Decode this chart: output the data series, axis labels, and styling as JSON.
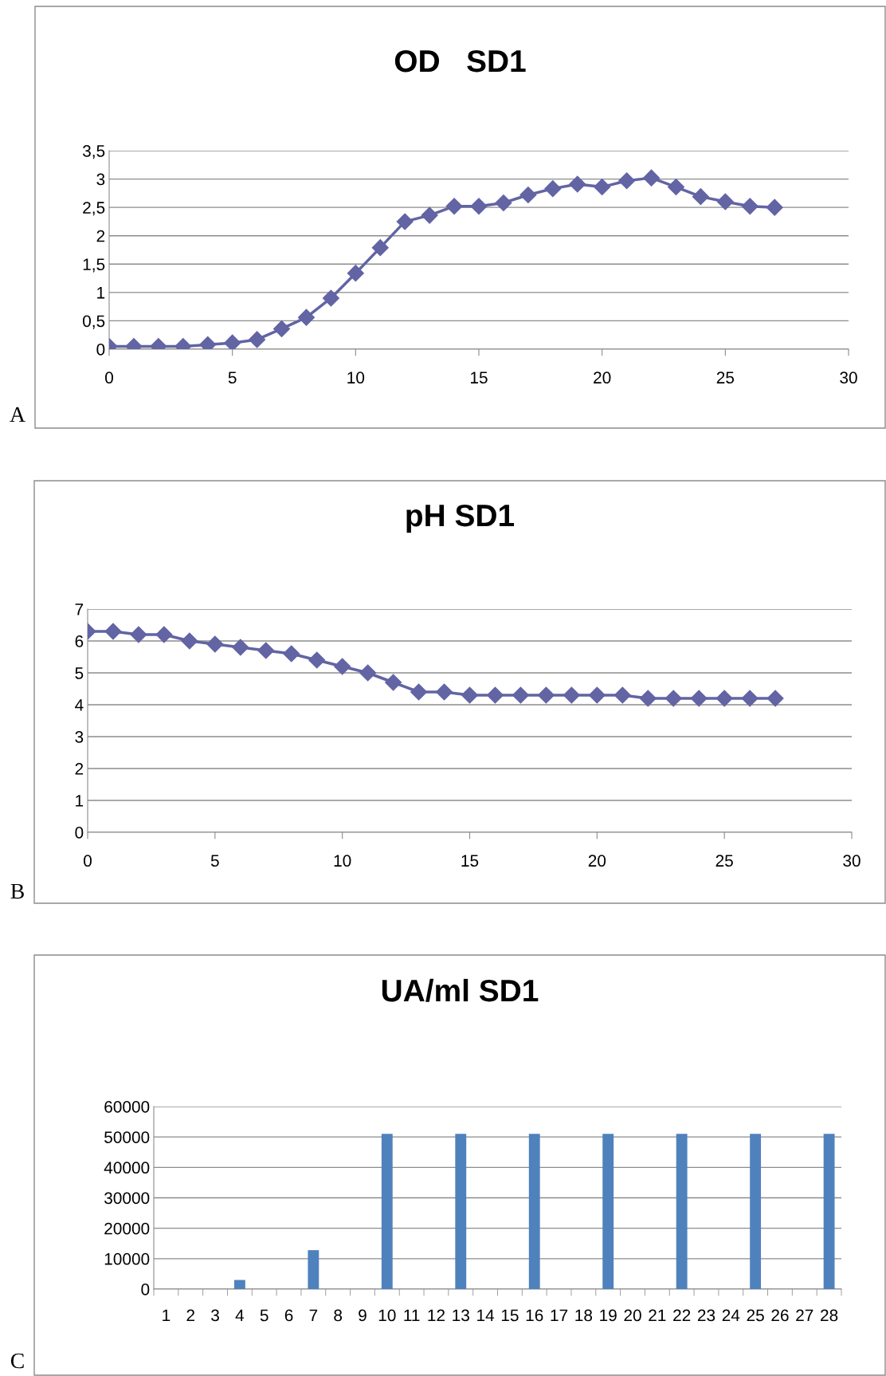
{
  "chart_data": [
    {
      "type": "line",
      "title": "OD   SD1",
      "x": [
        0,
        1,
        2,
        3,
        4,
        5,
        6,
        7,
        8,
        9,
        10,
        11,
        12,
        13,
        14,
        15,
        16,
        17,
        18,
        19,
        20,
        21,
        22,
        23,
        24,
        25,
        26,
        27
      ],
      "series": [
        {
          "color": "#6264a4",
          "values": [
            0.05,
            0.05,
            0.05,
            0.05,
            0.08,
            0.11,
            0.17,
            0.36,
            0.56,
            0.9,
            1.34,
            1.79,
            2.25,
            2.36,
            2.52,
            2.52,
            2.58,
            2.72,
            2.83,
            2.91,
            2.86,
            2.97,
            3.02,
            2.86,
            2.69,
            2.6,
            2.52,
            2.5
          ]
        }
      ],
      "xlim": [
        0,
        30
      ],
      "xticks": [
        0,
        5,
        10,
        15,
        20,
        25,
        30
      ],
      "ylim": [
        0,
        3.5
      ],
      "yticks": [
        0,
        {
          "value": 0.5,
          "label": "0,5"
        },
        1,
        {
          "value": 1.5,
          "label": "1,5"
        },
        2,
        {
          "value": 2.5,
          "label": "2,5"
        },
        3,
        {
          "value": 3.5,
          "label": "3,5"
        }
      ],
      "grid": "y",
      "marker": "diamond",
      "line_style": "solid",
      "annotations": [
        "A"
      ]
    },
    {
      "type": "line",
      "title": "pH SD1",
      "x": [
        0,
        1,
        2,
        3,
        4,
        5,
        6,
        7,
        8,
        9,
        10,
        11,
        12,
        13,
        14,
        15,
        16,
        17,
        18,
        19,
        20,
        21,
        22,
        23,
        24,
        25,
        26,
        27
      ],
      "series": [
        {
          "color": "#6264a4",
          "values": [
            6.3,
            6.3,
            6.2,
            6.2,
            6.0,
            5.9,
            5.8,
            5.7,
            5.6,
            5.4,
            5.2,
            5.0,
            4.7,
            4.4,
            4.4,
            4.3,
            4.3,
            4.3,
            4.3,
            4.3,
            4.3,
            4.3,
            4.2,
            4.2,
            4.2,
            4.2,
            4.2,
            4.2
          ]
        }
      ],
      "xlim": [
        0,
        30
      ],
      "xticks": [
        0,
        5,
        10,
        15,
        20,
        25,
        30
      ],
      "ylim": [
        0,
        7
      ],
      "yticks": [
        0,
        1,
        2,
        3,
        4,
        5,
        6,
        7
      ],
      "grid": "y",
      "marker": "diamond",
      "line_style": "solid",
      "annotations": [
        "B"
      ]
    },
    {
      "type": "bar",
      "title": "UA/ml SD1",
      "categories": [
        "1",
        "2",
        "3",
        "4",
        "5",
        "6",
        "7",
        "8",
        "9",
        "10",
        "11",
        "12",
        "13",
        "14",
        "15",
        "16",
        "17",
        "18",
        "19",
        "20",
        "21",
        "22",
        "23",
        "24",
        "25",
        "26",
        "27",
        "28"
      ],
      "series": [
        {
          "color": "#4f81bd",
          "values": [
            0,
            0,
            0,
            3000,
            0,
            0,
            12800,
            0,
            0,
            51000,
            0,
            0,
            51000,
            0,
            0,
            51000,
            0,
            0,
            51000,
            0,
            0,
            51000,
            0,
            0,
            51000,
            0,
            0,
            51000
          ]
        }
      ],
      "ylim": [
        0,
        60000
      ],
      "yticks": [
        0,
        10000,
        20000,
        30000,
        40000,
        50000,
        60000
      ],
      "grid": "y",
      "annotations": [
        "C"
      ]
    }
  ]
}
